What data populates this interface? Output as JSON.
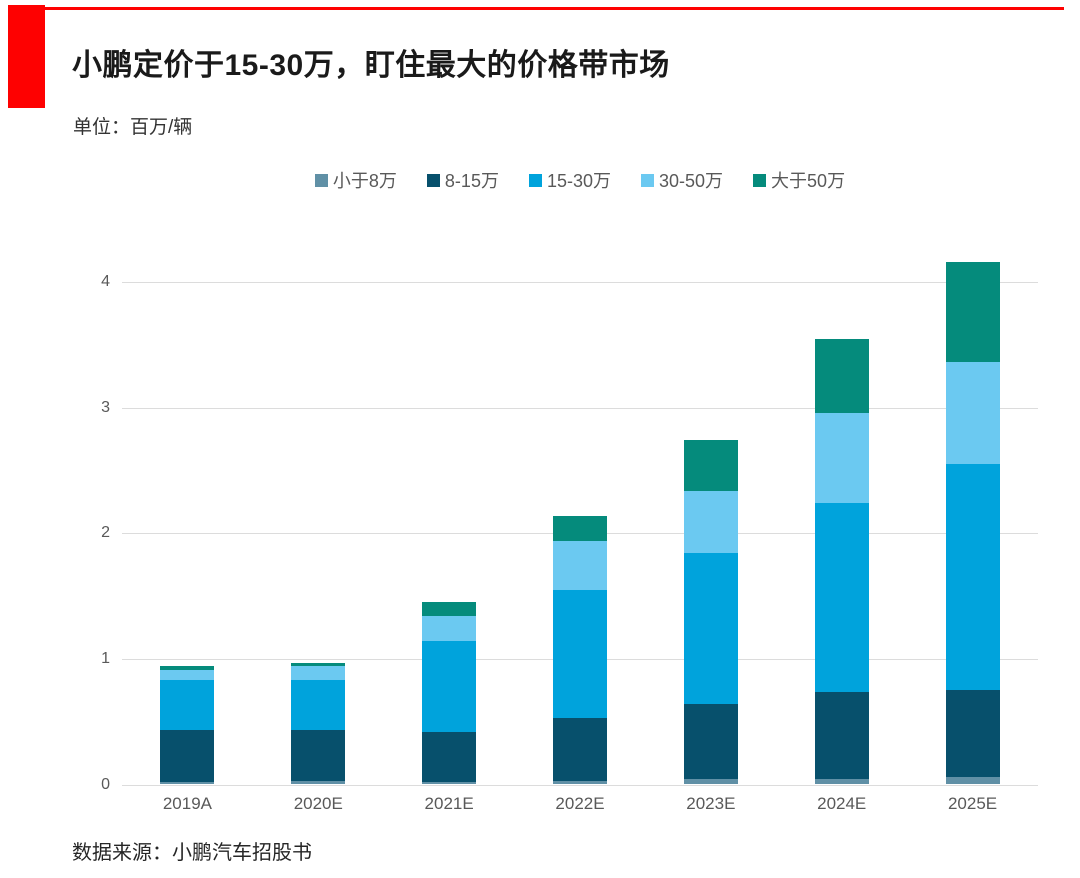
{
  "page": {
    "accent_red": "#fe0101",
    "background": "#ffffff"
  },
  "header": {
    "title": "小鹏定价于15-30万，盯住最大的价格带市场",
    "unit_label": "单位：百万/辆"
  },
  "footer": {
    "source": "数据来源：小鹏汽车招股书"
  },
  "chart_data": {
    "type": "bar",
    "stacked": true,
    "title": "小鹏定价于15-30万，盯住最大的价格带市场",
    "unit": "百万/辆",
    "categories": [
      "2019A",
      "2020E",
      "2021E",
      "2022E",
      "2023E",
      "2024E",
      "2025E"
    ],
    "series": [
      {
        "name": "小于8万",
        "color": "#6090a6",
        "values": [
          0.02,
          0.03,
          0.02,
          0.03,
          0.04,
          0.04,
          0.06
        ]
      },
      {
        "name": "8-15万",
        "color": "#07506c",
        "values": [
          0.41,
          0.4,
          0.4,
          0.5,
          0.6,
          0.7,
          0.69
        ]
      },
      {
        "name": "15-30万",
        "color": "#00a3dc",
        "values": [
          0.4,
          0.4,
          0.72,
          1.02,
          1.2,
          1.5,
          1.8
        ]
      },
      {
        "name": "30-50万",
        "color": "#6bc9f1",
        "values": [
          0.08,
          0.11,
          0.2,
          0.39,
          0.5,
          0.72,
          0.81
        ]
      },
      {
        "name": "大于50万",
        "color": "#058b7c",
        "values": [
          0.03,
          0.03,
          0.11,
          0.2,
          0.4,
          0.59,
          0.8
        ]
      }
    ],
    "totals": [
      0.94,
      0.97,
      1.45,
      2.14,
      2.74,
      3.55,
      4.16
    ],
    "xlabel": "",
    "ylabel": "",
    "ylim": [
      0,
      4.25
    ],
    "yticks": [
      0,
      1,
      2,
      3,
      4
    ],
    "grid": true,
    "legend_position": "top-center",
    "gridline_color": "#dcdcdc",
    "tick_label_color": "#595959"
  }
}
